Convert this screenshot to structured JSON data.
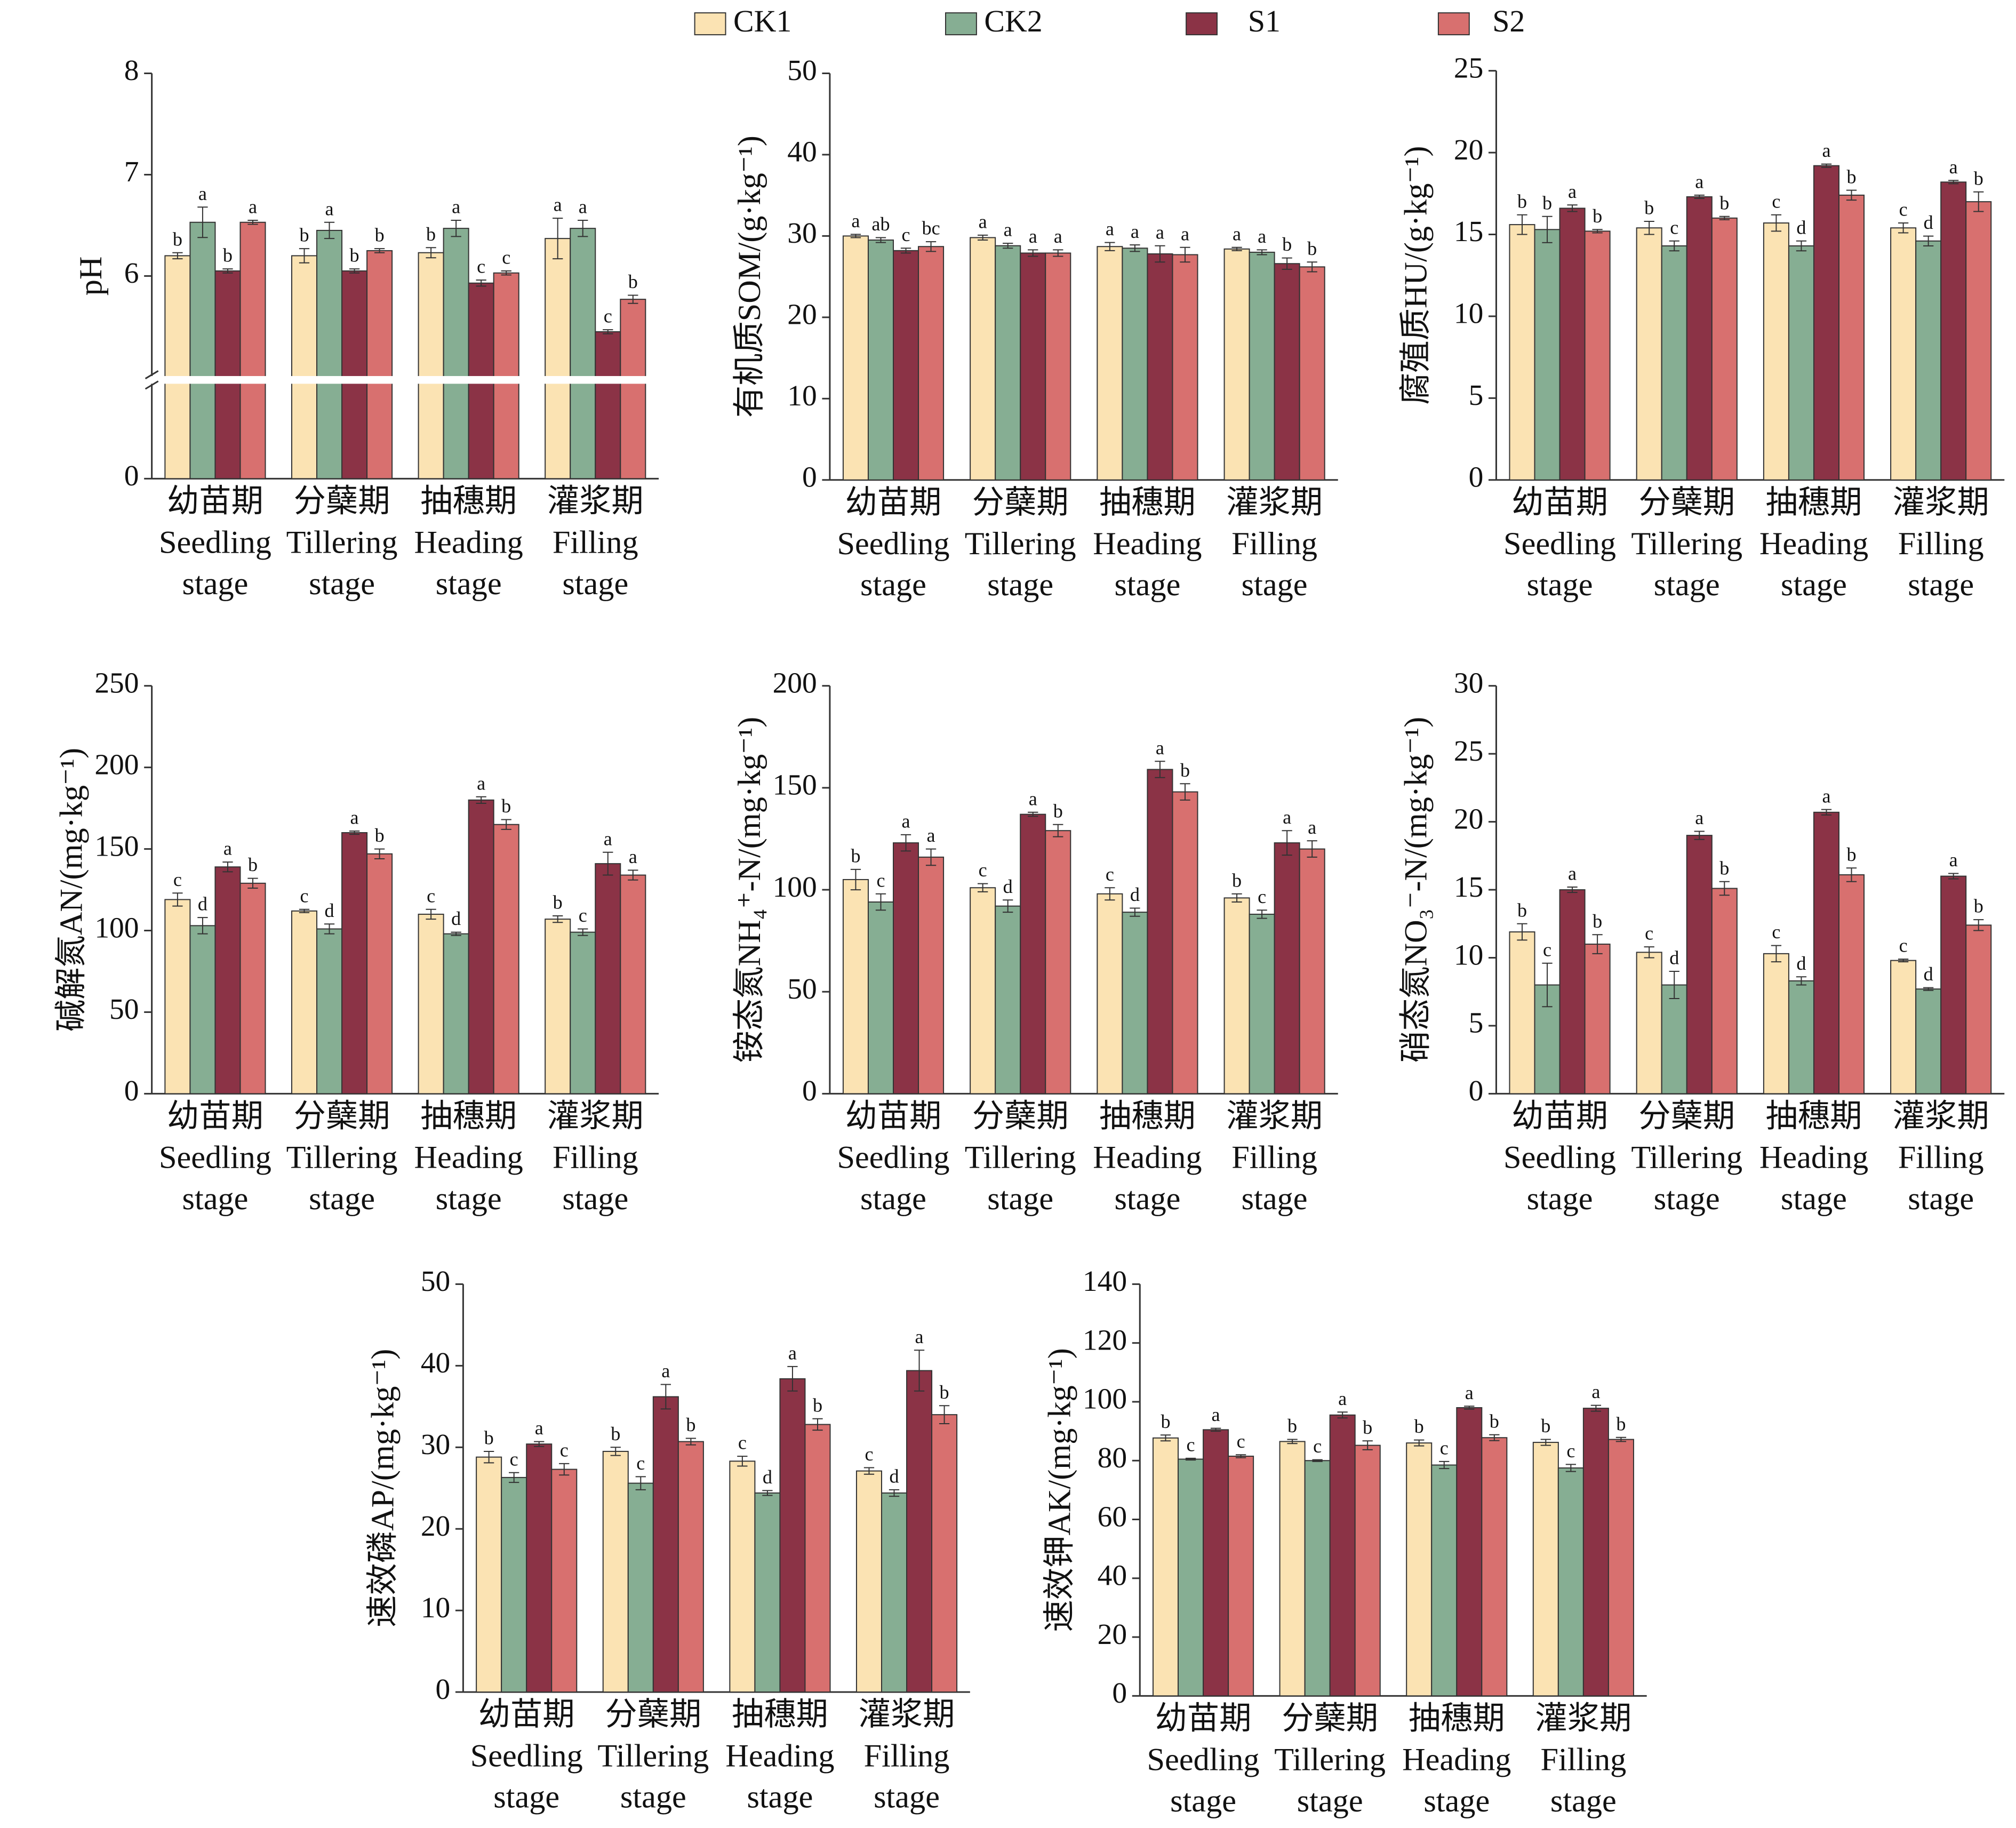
{
  "legend": [
    {
      "name": "CK1",
      "color": "#fbe3b3"
    },
    {
      "name": "CK2",
      "color": "#86ae93"
    },
    {
      "name": "S1",
      "color": "#8b3346"
    },
    {
      "name": "S2",
      "color": "#d8706f"
    }
  ],
  "chart_data": [
    {
      "type": "bar",
      "y_label": "pH",
      "ylim": [
        0,
        8
      ],
      "axis_break": 5,
      "yticks": [
        0,
        6,
        7,
        8
      ],
      "categories": [
        [
          "幼苗期",
          "Seedling",
          "stage"
        ],
        [
          "分蘖期",
          "Tillering",
          "stage"
        ],
        [
          "抽穗期",
          "Heading",
          "stage"
        ],
        [
          "灌浆期",
          "Filling",
          "stage"
        ]
      ],
      "series": [
        {
          "values": [
            6.2,
            6.2,
            6.23,
            6.37
          ],
          "errors": [
            0.03,
            0.07,
            0.05,
            0.2
          ],
          "labels": [
            "b",
            "b",
            "b",
            "a"
          ]
        },
        {
          "values": [
            6.53,
            6.45,
            6.47,
            6.47
          ],
          "errors": [
            0.15,
            0.08,
            0.08,
            0.08
          ],
          "labels": [
            "a",
            "a",
            "a",
            "a"
          ]
        },
        {
          "values": [
            6.05,
            6.05,
            5.93,
            5.45
          ],
          "errors": [
            0.02,
            0.02,
            0.03,
            0.02
          ],
          "labels": [
            "b",
            "b",
            "c",
            "c"
          ]
        },
        {
          "values": [
            6.53,
            6.25,
            6.03,
            5.77
          ],
          "errors": [
            0.02,
            0.02,
            0.02,
            0.04
          ],
          "labels": [
            "a",
            "b",
            "c",
            "b"
          ]
        }
      ]
    },
    {
      "type": "bar",
      "y_label": "有机质SOM/(g·kg⁻¹)",
      "ylim": [
        0,
        50
      ],
      "yticks": [
        0,
        10,
        20,
        30,
        40,
        50
      ],
      "categories": [
        [
          "幼苗期",
          "Seedling",
          "stage"
        ],
        [
          "分蘖期",
          "Tillering",
          "stage"
        ],
        [
          "抽穗期",
          "Heading",
          "stage"
        ],
        [
          "灌浆期",
          "Filling",
          "stage"
        ]
      ],
      "series": [
        {
          "values": [
            30.0,
            29.8,
            28.7,
            28.4
          ],
          "errors": [
            0.2,
            0.3,
            0.5,
            0.2
          ],
          "labels": [
            "a",
            "a",
            "a",
            "a"
          ]
        },
        {
          "values": [
            29.5,
            28.8,
            28.5,
            28.0
          ],
          "errors": [
            0.3,
            0.3,
            0.4,
            0.3
          ],
          "labels": [
            "ab",
            "a",
            "a",
            "a"
          ]
        },
        {
          "values": [
            28.2,
            27.9,
            27.8,
            26.6
          ],
          "errors": [
            0.3,
            0.4,
            1.0,
            0.7
          ],
          "labels": [
            "c",
            "a",
            "a",
            "b"
          ]
        },
        {
          "values": [
            28.7,
            27.9,
            27.7,
            26.2
          ],
          "errors": [
            0.6,
            0.4,
            0.9,
            0.6
          ],
          "labels": [
            "bc",
            "a",
            "a",
            "b"
          ]
        }
      ]
    },
    {
      "type": "bar",
      "y_label": "腐殖质HU/(g·kg⁻¹)",
      "ylim": [
        0,
        25
      ],
      "yticks": [
        0,
        5,
        10,
        15,
        20,
        25
      ],
      "categories": [
        [
          "幼苗期",
          "Seedling",
          "stage"
        ],
        [
          "分蘖期",
          "Tillering",
          "stage"
        ],
        [
          "抽穗期",
          "Heading",
          "stage"
        ],
        [
          "灌浆期",
          "Filling",
          "stage"
        ]
      ],
      "series": [
        {
          "values": [
            15.6,
            15.4,
            15.7,
            15.4
          ],
          "errors": [
            0.6,
            0.4,
            0.5,
            0.3
          ],
          "labels": [
            "b",
            "b",
            "c",
            "c"
          ]
        },
        {
          "values": [
            15.3,
            14.3,
            14.3,
            14.6
          ],
          "errors": [
            0.8,
            0.3,
            0.3,
            0.3
          ],
          "labels": [
            "b",
            "c",
            "d",
            "d"
          ]
        },
        {
          "values": [
            16.6,
            17.3,
            19.2,
            18.2
          ],
          "errors": [
            0.2,
            0.1,
            0.1,
            0.1
          ],
          "labels": [
            "a",
            "a",
            "a",
            "a"
          ]
        },
        {
          "values": [
            15.2,
            16.0,
            17.4,
            17.0
          ],
          "errors": [
            0.1,
            0.1,
            0.3,
            0.6
          ],
          "labels": [
            "b",
            "b",
            "b",
            "b"
          ]
        }
      ]
    },
    {
      "type": "bar",
      "y_label": "碱解氮AN/(mg·kg⁻¹)",
      "ylim": [
        0,
        250
      ],
      "yticks": [
        0,
        50,
        100,
        150,
        200,
        250
      ],
      "categories": [
        [
          "幼苗期",
          "Seedling",
          "stage"
        ],
        [
          "分蘖期",
          "Tillering",
          "stage"
        ],
        [
          "抽穗期",
          "Heading",
          "stage"
        ],
        [
          "灌浆期",
          "Filling",
          "stage"
        ]
      ],
      "series": [
        {
          "values": [
            119,
            112,
            110,
            107
          ],
          "errors": [
            4,
            1,
            3,
            2
          ],
          "labels": [
            "c",
            "c",
            "c",
            "b"
          ]
        },
        {
          "values": [
            103,
            101,
            98,
            99
          ],
          "errors": [
            5,
            3,
            1,
            2
          ],
          "labels": [
            "d",
            "d",
            "d",
            "c"
          ]
        },
        {
          "values": [
            139,
            160,
            180,
            141
          ],
          "errors": [
            3,
            1,
            2,
            7
          ],
          "labels": [
            "a",
            "a",
            "a",
            "a"
          ]
        },
        {
          "values": [
            129,
            147,
            165,
            134
          ],
          "errors": [
            3,
            3,
            3,
            3
          ],
          "labels": [
            "b",
            "b",
            "b",
            "a"
          ]
        }
      ]
    },
    {
      "type": "bar",
      "y_label": "铵态氮NH₄⁺-N/(mg·kg⁻¹)",
      "ylim": [
        0,
        200
      ],
      "yticks": [
        0,
        50,
        100,
        150,
        200
      ],
      "categories": [
        [
          "幼苗期",
          "Seedling",
          "stage"
        ],
        [
          "分蘖期",
          "Tillering",
          "stage"
        ],
        [
          "抽穗期",
          "Heading",
          "stage"
        ],
        [
          "灌浆期",
          "Filling",
          "stage"
        ]
      ],
      "series": [
        {
          "values": [
            105,
            101,
            98,
            96
          ],
          "errors": [
            5,
            2,
            3,
            2
          ],
          "labels": [
            "b",
            "c",
            "c",
            "b"
          ]
        },
        {
          "values": [
            94,
            92,
            89,
            88
          ],
          "errors": [
            4,
            3,
            2,
            2
          ],
          "labels": [
            "c",
            "d",
            "d",
            "c"
          ]
        },
        {
          "values": [
            123,
            137,
            159,
            123
          ],
          "errors": [
            4,
            1,
            4,
            6
          ],
          "labels": [
            "a",
            "a",
            "a",
            "a"
          ]
        },
        {
          "values": [
            116,
            129,
            148,
            120
          ],
          "errors": [
            4,
            3,
            4,
            4
          ],
          "labels": [
            "a",
            "b",
            "b",
            "a"
          ]
        }
      ]
    },
    {
      "type": "bar",
      "y_label": "硝态氮NO₃⁻-N/(mg·kg⁻¹)",
      "ylim": [
        0,
        30
      ],
      "yticks": [
        0,
        5,
        10,
        15,
        20,
        25,
        30
      ],
      "categories": [
        [
          "幼苗期",
          "Seedling",
          "stage"
        ],
        [
          "分蘖期",
          "Tillering",
          "stage"
        ],
        [
          "抽穗期",
          "Heading",
          "stage"
        ],
        [
          "灌浆期",
          "Filling",
          "stage"
        ]
      ],
      "series": [
        {
          "values": [
            11.9,
            10.4,
            10.3,
            9.8
          ],
          "errors": [
            0.6,
            0.4,
            0.6,
            0.1
          ],
          "labels": [
            "b",
            "c",
            "c",
            "c"
          ]
        },
        {
          "values": [
            8.0,
            8.0,
            8.3,
            7.7
          ],
          "errors": [
            1.6,
            1.0,
            0.3,
            0.1
          ],
          "labels": [
            "c",
            "d",
            "d",
            "d"
          ]
        },
        {
          "values": [
            15.0,
            19.0,
            20.7,
            16.0
          ],
          "errors": [
            0.2,
            0.3,
            0.2,
            0.2
          ],
          "labels": [
            "a",
            "a",
            "a",
            "a"
          ]
        },
        {
          "values": [
            11.0,
            15.1,
            16.1,
            12.4
          ],
          "errors": [
            0.7,
            0.5,
            0.5,
            0.4
          ],
          "labels": [
            "b",
            "b",
            "b",
            "b"
          ]
        }
      ]
    },
    {
      "type": "bar",
      "y_label": "速效磷AP/(mg·kg⁻¹)",
      "ylim": [
        0,
        50
      ],
      "yticks": [
        0,
        10,
        20,
        30,
        40,
        50
      ],
      "categories": [
        [
          "幼苗期",
          "Seedling",
          "stage"
        ],
        [
          "分蘖期",
          "Tillering",
          "stage"
        ],
        [
          "抽穗期",
          "Heading",
          "stage"
        ],
        [
          "灌浆期",
          "Filling",
          "stage"
        ]
      ],
      "series": [
        {
          "values": [
            28.8,
            29.5,
            28.3,
            27.1
          ],
          "errors": [
            0.7,
            0.5,
            0.6,
            0.4
          ],
          "labels": [
            "b",
            "b",
            "c",
            "c"
          ]
        },
        {
          "values": [
            26.3,
            25.6,
            24.4,
            24.4
          ],
          "errors": [
            0.6,
            0.8,
            0.3,
            0.4
          ],
          "labels": [
            "c",
            "c",
            "d",
            "d"
          ]
        },
        {
          "values": [
            30.4,
            36.2,
            38.4,
            39.4
          ],
          "errors": [
            0.3,
            1.5,
            1.5,
            2.5
          ],
          "labels": [
            "a",
            "a",
            "a",
            "a"
          ]
        },
        {
          "values": [
            27.3,
            30.7,
            32.8,
            34.0
          ],
          "errors": [
            0.7,
            0.4,
            0.7,
            1.1
          ],
          "labels": [
            "c",
            "b",
            "b",
            "b"
          ]
        }
      ]
    },
    {
      "type": "bar",
      "y_label": "速效钾AK/(mg·kg⁻¹)",
      "ylim": [
        0,
        140
      ],
      "yticks": [
        0,
        20,
        40,
        60,
        80,
        100,
        120,
        140
      ],
      "categories": [
        [
          "幼苗期",
          "Seedling",
          "stage"
        ],
        [
          "分蘖期",
          "Tillering",
          "stage"
        ],
        [
          "抽穗期",
          "Heading",
          "stage"
        ],
        [
          "灌浆期",
          "Filling",
          "stage"
        ]
      ],
      "series": [
        {
          "values": [
            87.7,
            86.5,
            86.0,
            86.2
          ],
          "errors": [
            1.0,
            0.7,
            1.0,
            1.0
          ],
          "labels": [
            "b",
            "b",
            "b",
            "b"
          ]
        },
        {
          "values": [
            80.5,
            80.0,
            78.5,
            77.5
          ],
          "errors": [
            0.3,
            0.3,
            1.2,
            1.2
          ],
          "labels": [
            "c",
            "c",
            "c",
            "c"
          ]
        },
        {
          "values": [
            90.5,
            95.5,
            98.0,
            97.8
          ],
          "errors": [
            0.5,
            1.0,
            0.5,
            1.0
          ],
          "labels": [
            "a",
            "a",
            "a",
            "a"
          ]
        },
        {
          "values": [
            81.5,
            85.2,
            87.8,
            87.2
          ],
          "errors": [
            0.5,
            1.5,
            1.0,
            0.7
          ],
          "labels": [
            "c",
            "b",
            "b",
            "b"
          ]
        }
      ]
    }
  ]
}
